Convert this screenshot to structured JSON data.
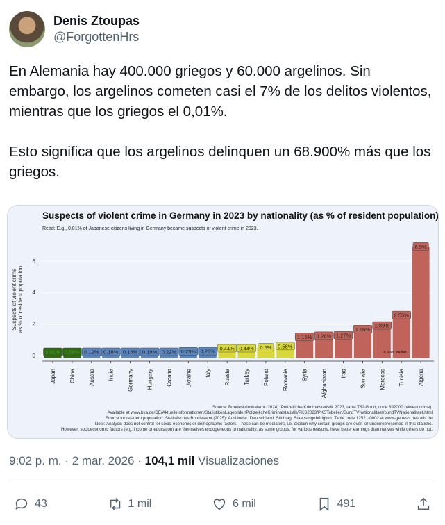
{
  "author": {
    "name": "Denis Ztoupas",
    "handle": "@ForgottenHrs"
  },
  "post": {
    "text": "En Alemania hay 400.000 griegos y 60.000 argelinos. Sin embargo, los argelinos cometen casi el 7% de los delitos violentos, mientras que los griegos el 0,01%.\n\nEsto significa que los argelinos delinquen un 68.900% más que los griegos."
  },
  "meta": {
    "time": "9:02 p. m.",
    "date": "2 mar. 2026",
    "views": "104,1 mil",
    "views_label": "Visualizaciones"
  },
  "actions": {
    "replies": "43",
    "reposts": "1 mil",
    "likes": "6 mil",
    "bookmarks": "491"
  },
  "chart_data": {
    "type": "bar",
    "title": "Suspects of violent crime in Germany in 2023 by nationality (as % of resident population)",
    "subtitle": "Read: E.g., 0.01% of Japanese citizens living in Germany became suspects of violent crime in 2023.",
    "ylabel": "Suspects of violent crime\nas % of resident population",
    "ylim": [
      0,
      7
    ],
    "yticks": [
      0,
      2,
      4,
      6
    ],
    "grid": true,
    "categories": [
      "Japan",
      "China",
      "Austria",
      "India",
      "Germany",
      "Hungary",
      "Croatia",
      "Ukraine",
      "Italy",
      "Russia",
      "Turkey",
      "Poland",
      "Romania",
      "Syria",
      "Afghanistan",
      "Iraq",
      "Somalia",
      "Morocco",
      "Tunisia",
      "Algeria"
    ],
    "values": [
      0.01,
      0.08,
      0.12,
      0.16,
      0.16,
      0.19,
      0.22,
      0.25,
      0.26,
      0.44,
      0.44,
      0.5,
      0.58,
      1.16,
      1.24,
      1.27,
      1.66,
      1.89,
      2.55,
      6.9
    ],
    "labels": [
      "0.01%",
      "0.08%",
      "0.12%",
      "0.16%",
      "0.16%",
      "0.19%",
      "0.22%",
      "0.25%",
      "0.26%",
      "0.44%",
      "0.44%",
      "0.5%",
      "0.58%",
      "1.16%",
      "1.24%",
      "1.27%",
      "1.66%",
      "1.89%",
      "2.55%",
      "6.9%"
    ],
    "groups": [
      0,
      0,
      1,
      1,
      1,
      1,
      1,
      1,
      1,
      2,
      2,
      2,
      2,
      3,
      3,
      3,
      3,
      3,
      3,
      3
    ],
    "group_colors": [
      "#2f6a14",
      "#5a86bd",
      "#d8d83c",
      "#c0645b"
    ],
    "watermark": "X: @Dr_Vanitas_",
    "notes": [
      "Source: Bundeskriminalamt (2024): Polizeiliche Kriminalstatistik 2023, table T62-Bund, code 892000 (violent crime).",
      "Available at www.bka.de/DE/AktuelleInformationen/StatistikenLagebilder/PolizeilicheKriminalstatistik/PKS2023/PKSTabellen/BundTVNationalitaet/bundTVNationalitaet.html",
      "Source for resident population: Statistisches Bundesamt (2025): Ausländer: Deutschland, Stichtag, Staatsangehörigkeit. Table code 12521-0002 at www-genesis.destatis.de",
      "Note: Analysis does not control for socio-economic or demographic factors. These can be mediators, i.e. explain why certain groups are over- or underrepresented in this statistic.",
      "However, socioeconomic factors (e.g. income or education) are themselves endogeneous to nationality, as some groups, for various reasons, have better earnings than natives while others do not."
    ]
  }
}
